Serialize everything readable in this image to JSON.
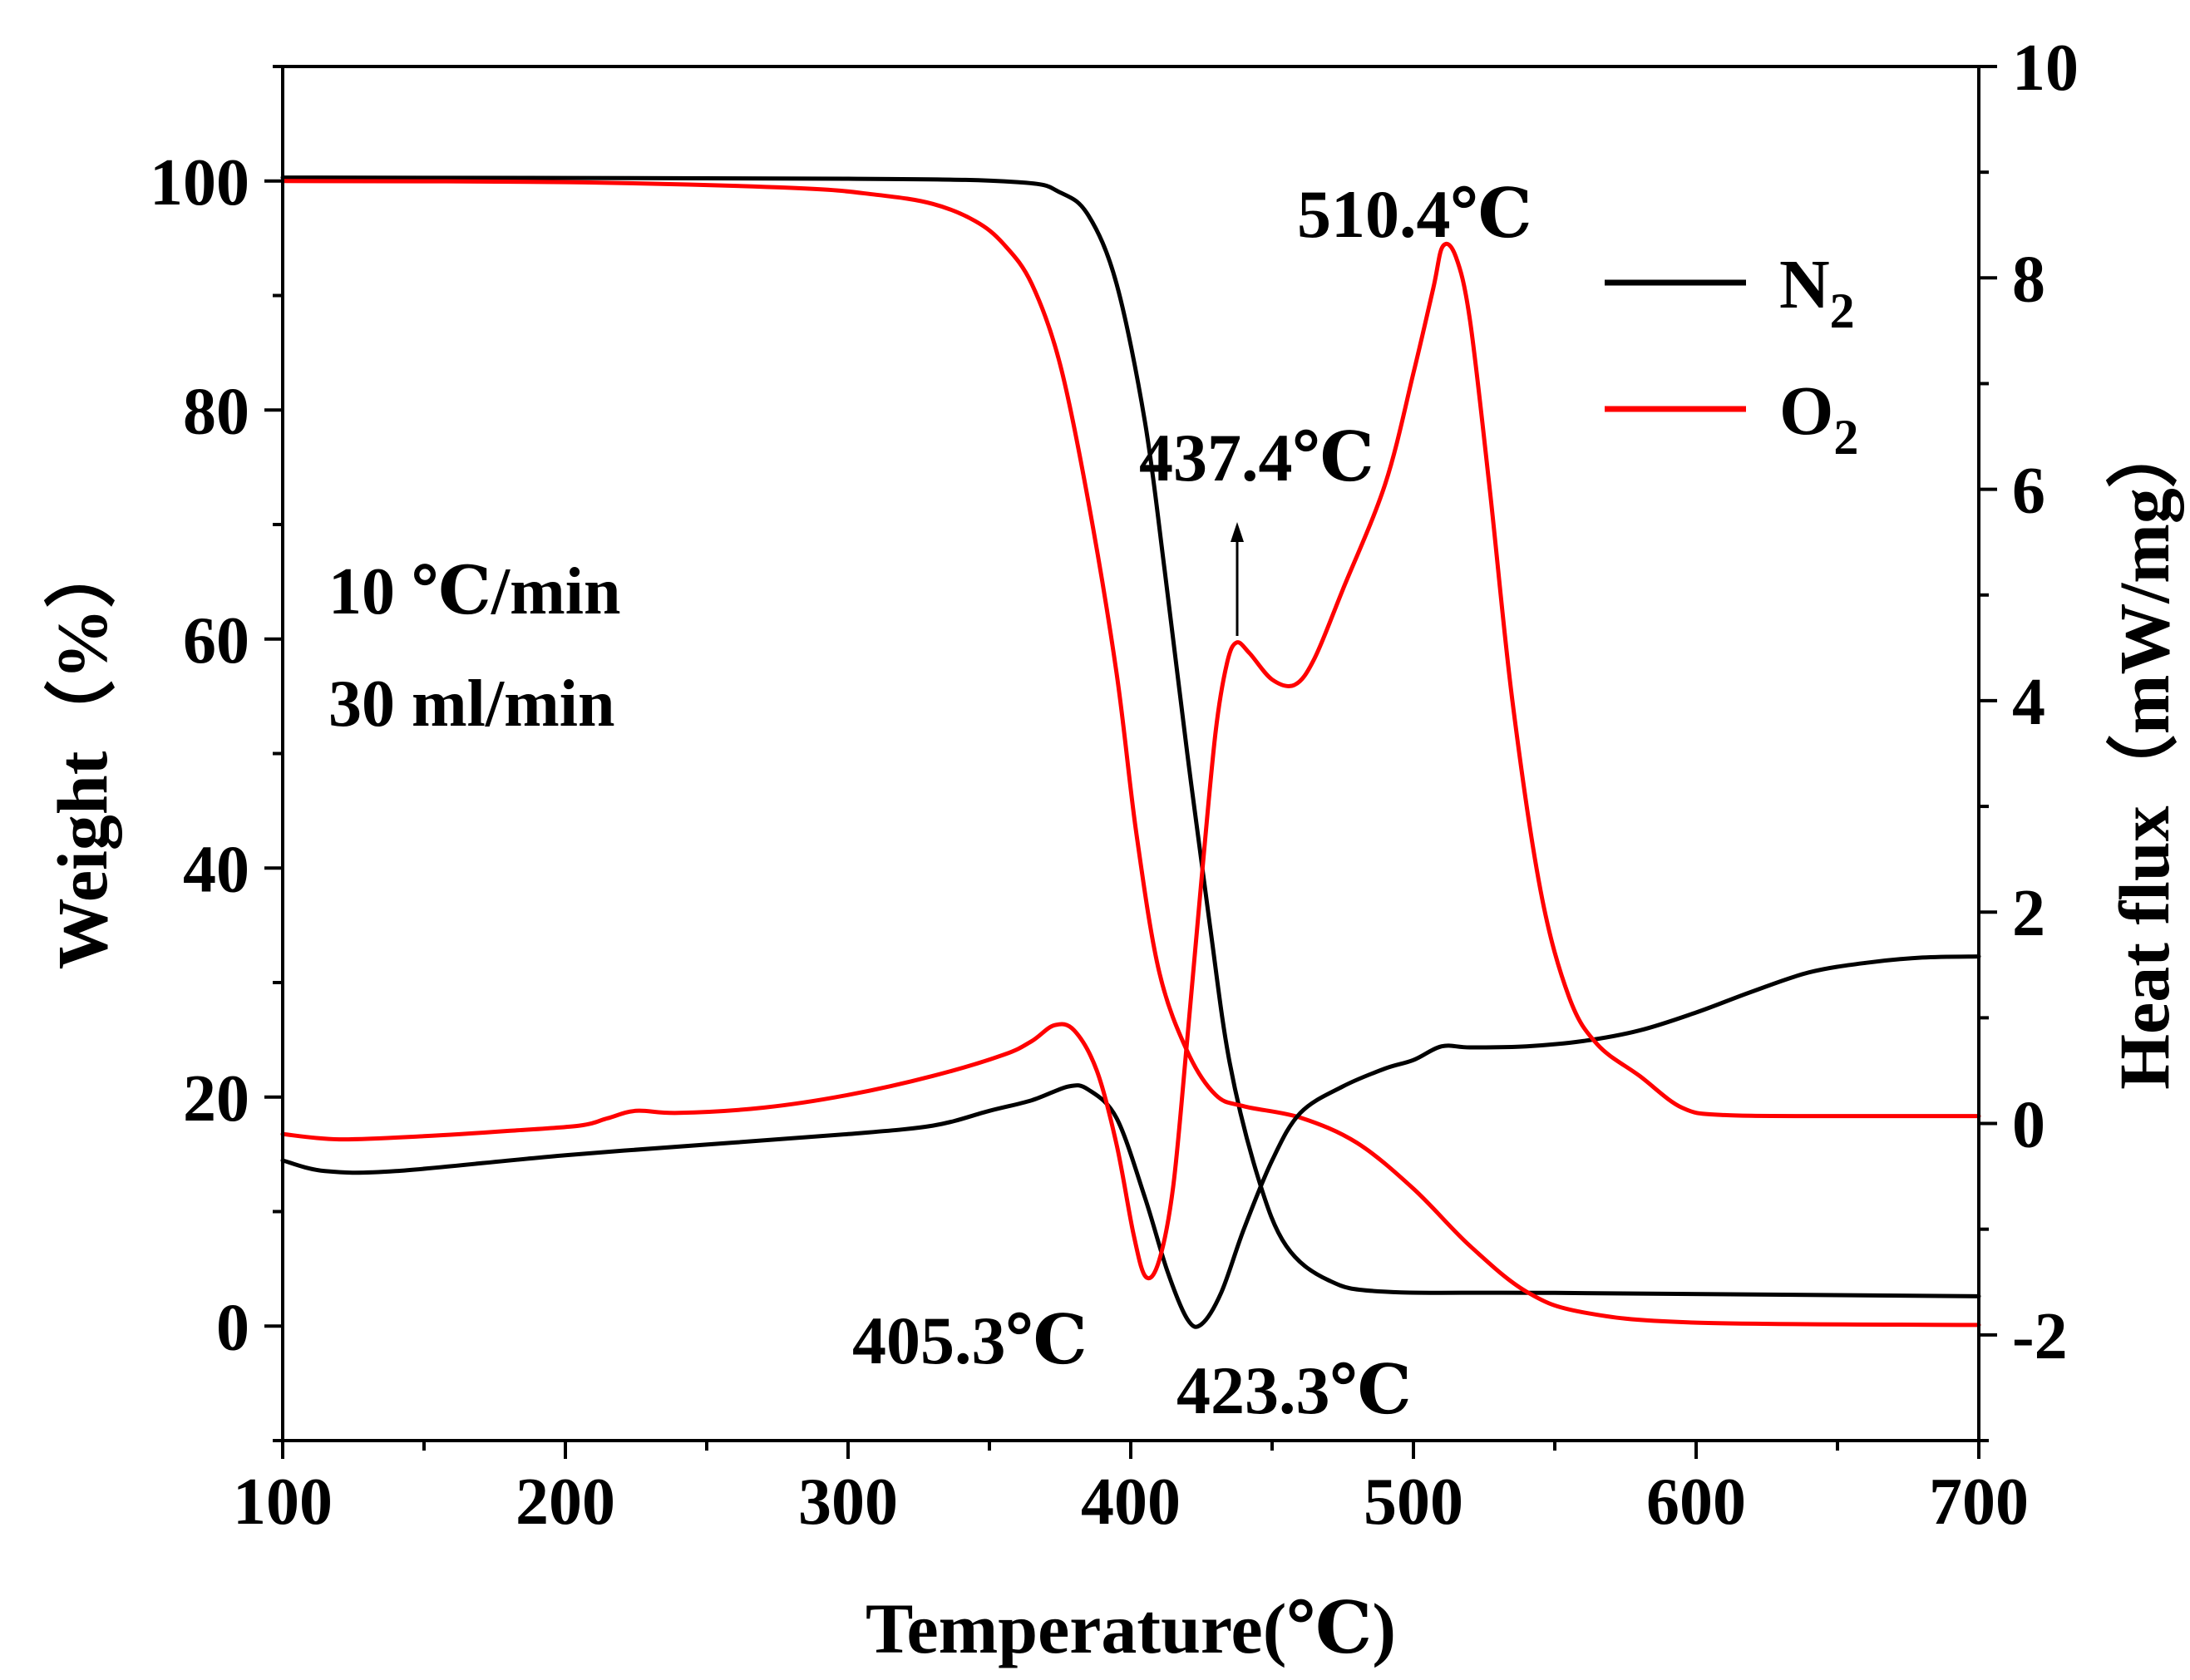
{
  "chart_data": {
    "type": "line",
    "title": "",
    "xlabel": "Temperature(℃)",
    "ylabel_left": "Weight（%）",
    "ylabel_right": "Heat flux（mW/mg）",
    "xlim": [
      100,
      700
    ],
    "ylim_left": [
      -10,
      110
    ],
    "ylim_right": [
      -3,
      10
    ],
    "x_ticks": [
      "100",
      "200",
      "300",
      "400",
      "500",
      "600",
      "700"
    ],
    "y_left_ticks": [
      "0",
      "20",
      "40",
      "60",
      "80",
      "100"
    ],
    "y_right_ticks": [
      "-2",
      "0",
      "2",
      "4",
      "6",
      "8",
      "10"
    ],
    "grid": false,
    "legend_position": "top-right",
    "legend": [
      {
        "label_main": "N",
        "label_sub": "2",
        "color": "#000000"
      },
      {
        "label_main": "O",
        "label_sub": "2",
        "color": "#ff0000"
      }
    ],
    "conditions": [
      "10 ℃/min",
      "30 ml/min"
    ],
    "annotations": [
      {
        "text": "510.4℃",
        "x": 510.4
      },
      {
        "text": "437.4℃",
        "x": 437.4
      },
      {
        "text": "405.3℃",
        "x": 405.3
      },
      {
        "text": "423.3℃",
        "x": 423.3
      }
    ],
    "series": [
      {
        "name": "N2 weight",
        "axis": "left",
        "color": "#000000",
        "points": [
          [
            100,
            100.3
          ],
          [
            300,
            100.2
          ],
          [
            360,
            99.9
          ],
          [
            375,
            99.0
          ],
          [
            385,
            97.0
          ],
          [
            395,
            91.0
          ],
          [
            405,
            79.0
          ],
          [
            412,
            66.0
          ],
          [
            420,
            50.0
          ],
          [
            428,
            35.0
          ],
          [
            435,
            23.0
          ],
          [
            445,
            13.0
          ],
          [
            455,
            7.0
          ],
          [
            470,
            4.0
          ],
          [
            490,
            3.0
          ],
          [
            550,
            2.9
          ],
          [
            700,
            2.6
          ]
        ]
      },
      {
        "name": "O2 weight",
        "axis": "left",
        "color": "#ff0000",
        "points": [
          [
            100,
            100.0
          ],
          [
            200,
            99.9
          ],
          [
            280,
            99.4
          ],
          [
            310,
            98.8
          ],
          [
            330,
            98.0
          ],
          [
            345,
            96.5
          ],
          [
            355,
            94.5
          ],
          [
            365,
            91.0
          ],
          [
            375,
            84.0
          ],
          [
            385,
            72.0
          ],
          [
            395,
            57.0
          ],
          [
            402,
            43.0
          ],
          [
            410,
            31.0
          ],
          [
            420,
            24.0
          ],
          [
            430,
            20.2
          ],
          [
            440,
            19.2
          ],
          [
            460,
            18.2
          ],
          [
            480,
            16.0
          ],
          [
            500,
            12.0
          ],
          [
            520,
            7.0
          ],
          [
            540,
            3.0
          ],
          [
            560,
            1.2
          ],
          [
            600,
            0.3
          ],
          [
            700,
            0.1
          ]
        ]
      },
      {
        "name": "N2 heat flux",
        "axis": "right",
        "color": "#000000",
        "points": [
          [
            100,
            -0.35
          ],
          [
            115,
            -0.45
          ],
          [
            140,
            -0.45
          ],
          [
            200,
            -0.3
          ],
          [
            260,
            -0.18
          ],
          [
            300,
            -0.1
          ],
          [
            330,
            -0.02
          ],
          [
            350,
            0.12
          ],
          [
            365,
            0.22
          ],
          [
            378,
            0.35
          ],
          [
            385,
            0.32
          ],
          [
            395,
            0.05
          ],
          [
            405,
            -0.7
          ],
          [
            413,
            -1.4
          ],
          [
            420,
            -1.85
          ],
          [
            425,
            -1.9
          ],
          [
            432,
            -1.6
          ],
          [
            440,
            -1.0
          ],
          [
            450,
            -0.35
          ],
          [
            460,
            0.1
          ],
          [
            475,
            0.35
          ],
          [
            490,
            0.52
          ],
          [
            500,
            0.6
          ],
          [
            510,
            0.73
          ],
          [
            520,
            0.72
          ],
          [
            540,
            0.73
          ],
          [
            560,
            0.78
          ],
          [
            580,
            0.88
          ],
          [
            600,
            1.05
          ],
          [
            620,
            1.25
          ],
          [
            640,
            1.43
          ],
          [
            660,
            1.52
          ],
          [
            680,
            1.57
          ],
          [
            700,
            1.58
          ]
        ]
      },
      {
        "name": "O2 heat flux",
        "axis": "right",
        "color": "#ff0000",
        "points": [
          [
            100,
            -0.1
          ],
          [
            120,
            -0.15
          ],
          [
            150,
            -0.12
          ],
          [
            180,
            -0.07
          ],
          [
            205,
            -0.02
          ],
          [
            215,
            0.05
          ],
          [
            225,
            0.12
          ],
          [
            240,
            0.1
          ],
          [
            270,
            0.15
          ],
          [
            300,
            0.27
          ],
          [
            330,
            0.45
          ],
          [
            355,
            0.65
          ],
          [
            365,
            0.78
          ],
          [
            373,
            0.93
          ],
          [
            380,
            0.88
          ],
          [
            388,
            0.5
          ],
          [
            395,
            -0.2
          ],
          [
            401,
            -1.05
          ],
          [
            405.3,
            -1.45
          ],
          [
            410,
            -1.3
          ],
          [
            415,
            -0.6
          ],
          [
            420,
            0.8
          ],
          [
            425,
            2.3
          ],
          [
            430,
            3.7
          ],
          [
            434,
            4.35
          ],
          [
            437.4,
            4.55
          ],
          [
            442,
            4.45
          ],
          [
            450,
            4.2
          ],
          [
            458,
            4.15
          ],
          [
            465,
            4.4
          ],
          [
            475,
            5.05
          ],
          [
            490,
            6.05
          ],
          [
            500,
            7.1
          ],
          [
            507,
            7.9
          ],
          [
            510.4,
            8.3
          ],
          [
            515,
            8.2
          ],
          [
            520,
            7.6
          ],
          [
            527,
            6.0
          ],
          [
            535,
            4.0
          ],
          [
            545,
            2.2
          ],
          [
            555,
            1.2
          ],
          [
            565,
            0.75
          ],
          [
            580,
            0.45
          ],
          [
            595,
            0.15
          ],
          [
            610,
            0.08
          ],
          [
            650,
            0.07
          ],
          [
            700,
            0.07
          ]
        ]
      }
    ]
  }
}
